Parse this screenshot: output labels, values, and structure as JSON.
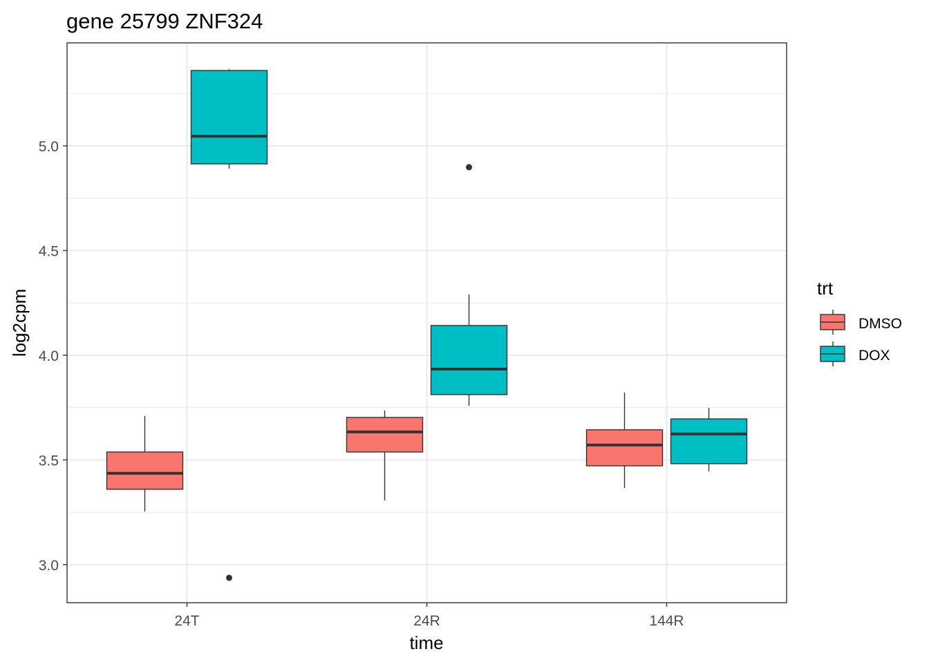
{
  "chart_data": {
    "type": "boxplot",
    "title": "gene 25799 ZNF324",
    "xlabel": "time",
    "ylabel": "log2cpm",
    "categories": [
      "24T",
      "24R",
      "144R"
    ],
    "ylim": [
      2.818,
      5.492
    ],
    "yticks": [
      3.0,
      3.5,
      4.0,
      4.5,
      5.0
    ],
    "ytick_labels": [
      "3.0",
      "3.5",
      "4.0",
      "4.5",
      "5.0"
    ],
    "grid": true,
    "legend": {
      "title": "trt",
      "position": "right",
      "entries": [
        "DMSO",
        "DOX"
      ]
    },
    "series": [
      {
        "name": "DMSO",
        "color": "#F8766D",
        "boxes": [
          {
            "category": "24T",
            "min": 3.254,
            "q1": 3.36,
            "median": 3.436,
            "q3": 3.538,
            "max": 3.71,
            "outliers": []
          },
          {
            "category": "24R",
            "min": 3.307,
            "q1": 3.538,
            "median": 3.634,
            "q3": 3.703,
            "max": 3.736,
            "outliers": []
          },
          {
            "category": "144R",
            "min": 3.366,
            "q1": 3.472,
            "median": 3.571,
            "q3": 3.644,
            "max": 3.822,
            "outliers": []
          }
        ]
      },
      {
        "name": "DOX",
        "color": "#00BFC4",
        "boxes": [
          {
            "category": "24T",
            "min": 4.891,
            "q1": 4.914,
            "median": 5.046,
            "q3": 5.36,
            "max": 5.366,
            "outliers": [
              2.937
            ]
          },
          {
            "category": "24R",
            "min": 3.759,
            "q1": 3.812,
            "median": 3.934,
            "q3": 4.142,
            "max": 4.29,
            "outliers": [
              4.898
            ]
          },
          {
            "category": "144R",
            "min": 3.446,
            "q1": 3.482,
            "median": 3.624,
            "q3": 3.696,
            "max": 3.749,
            "outliers": []
          }
        ]
      }
    ]
  }
}
